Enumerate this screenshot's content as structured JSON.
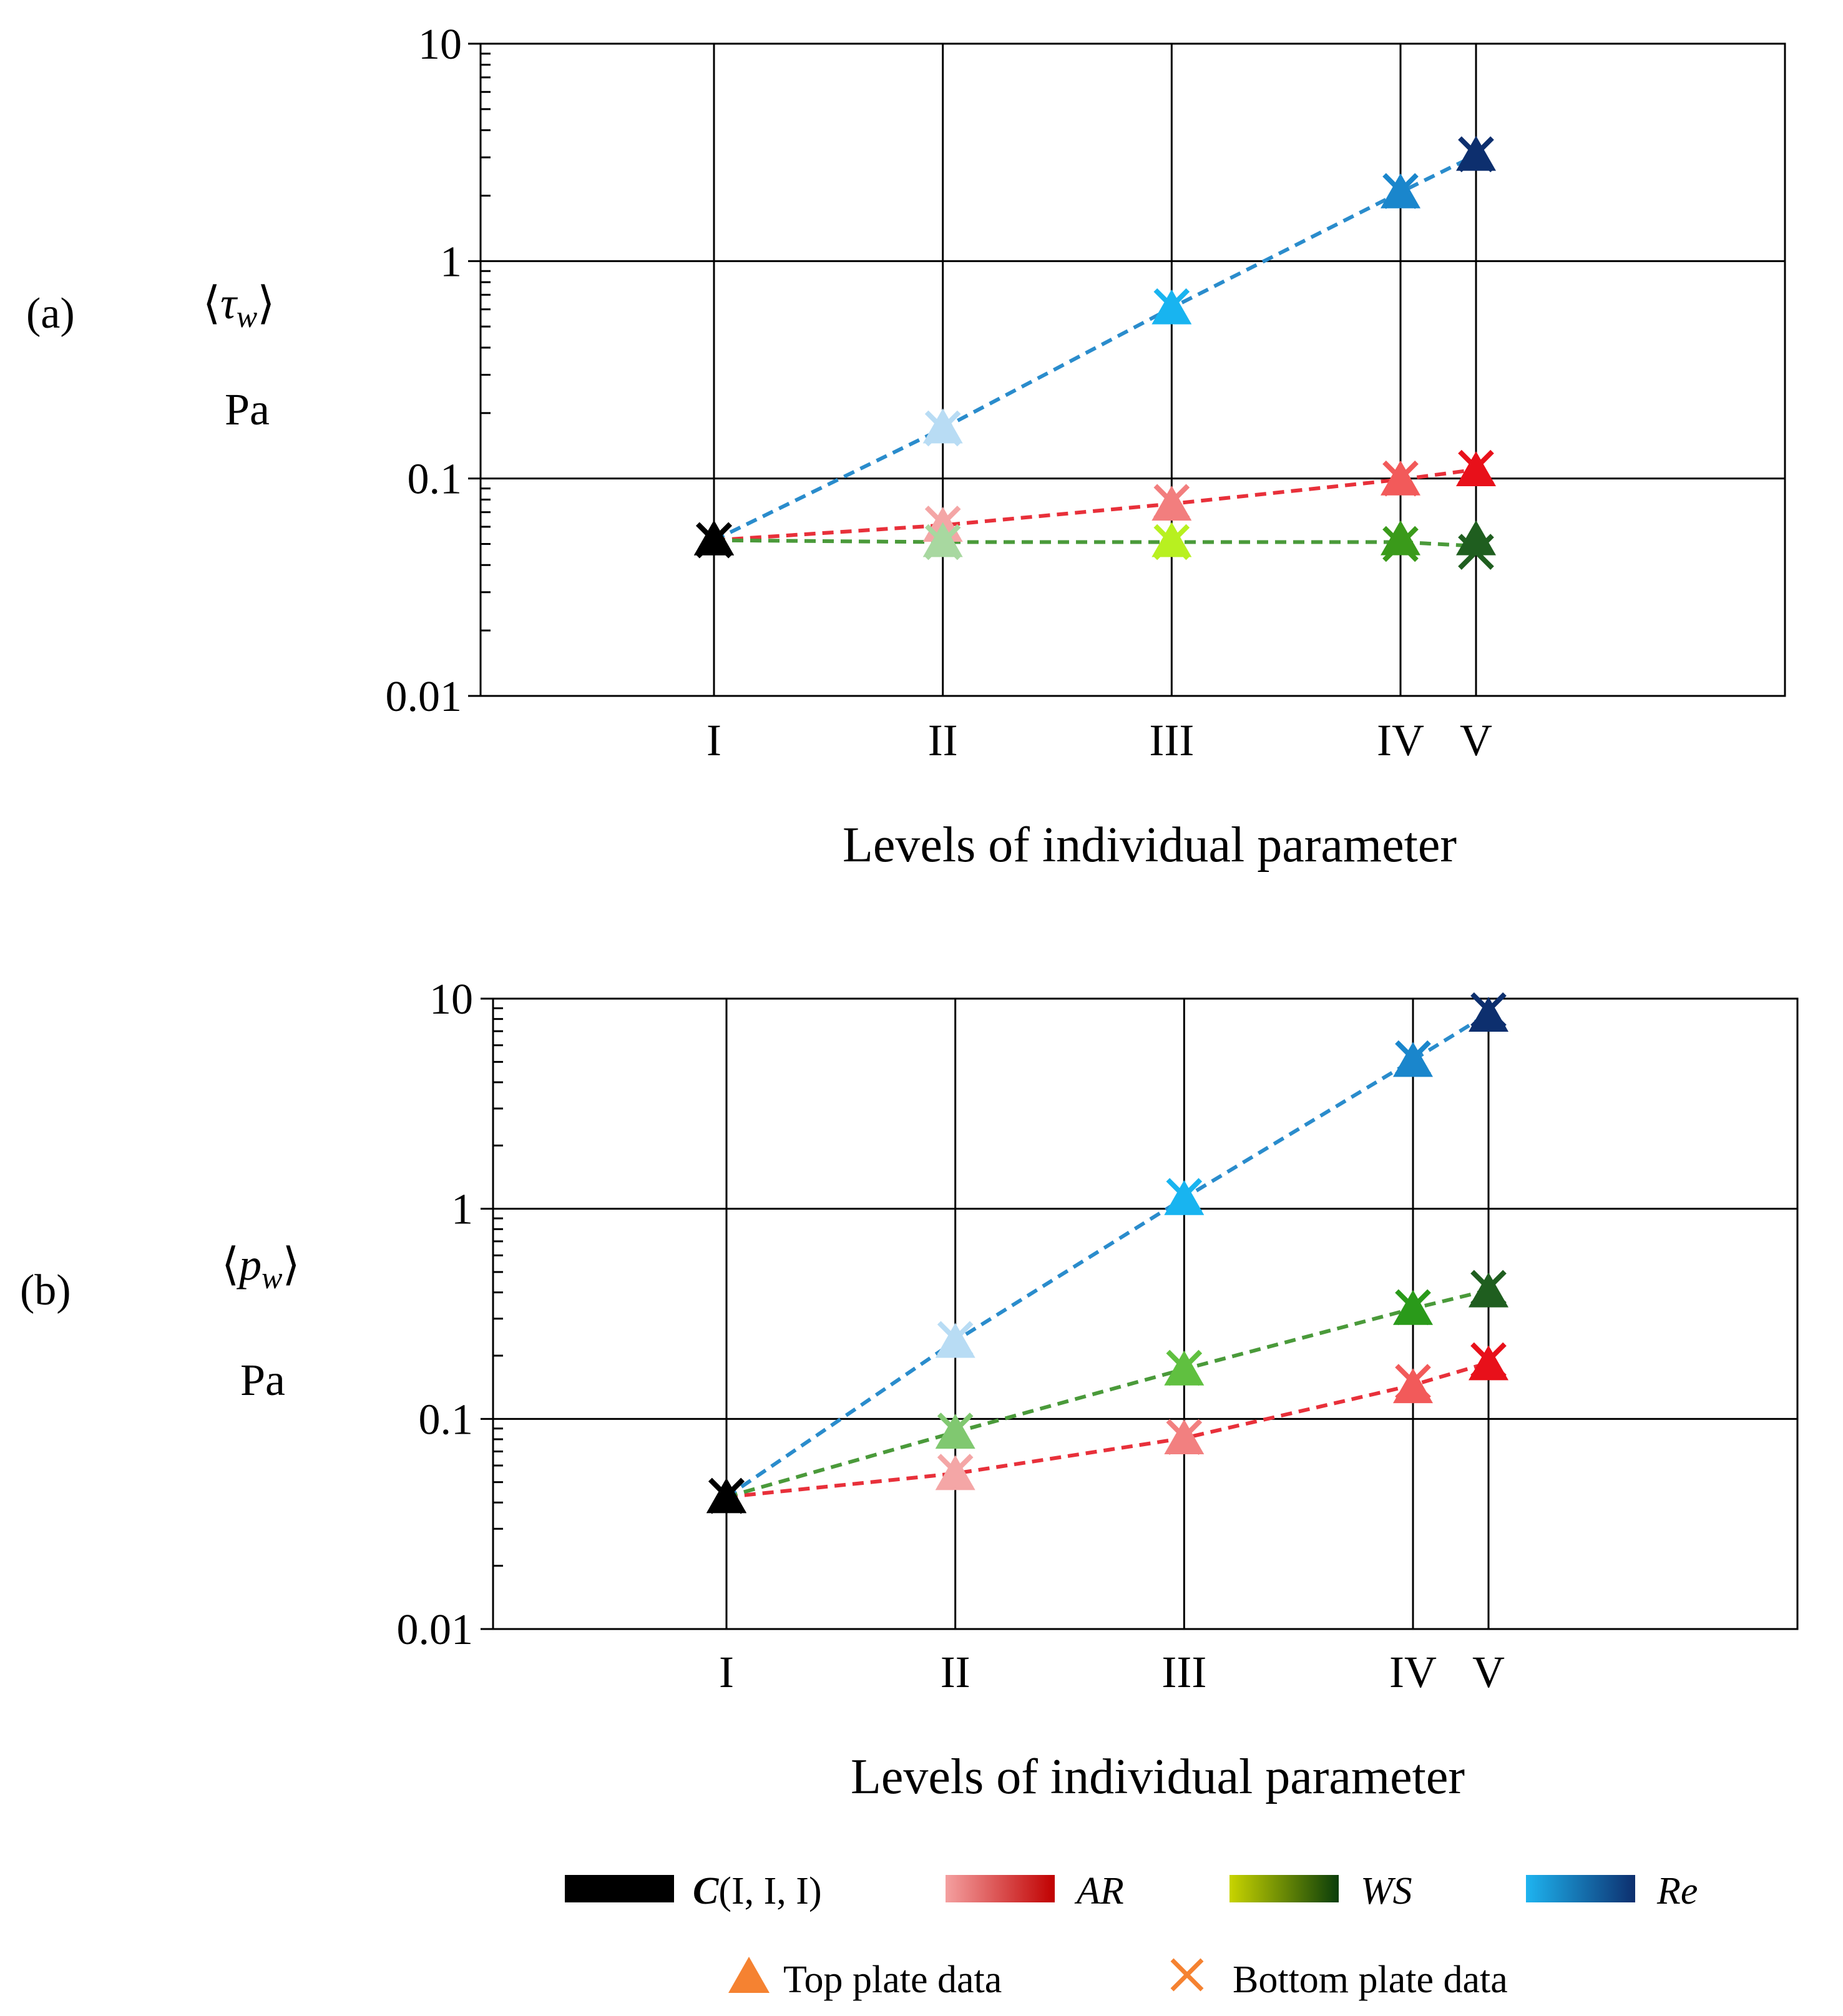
{
  "panels": [
    {
      "panel_label": "(a)",
      "ylabel_line1": "⟨τ_w⟩",
      "ylabel_symbol": "τ",
      "ylabel_subscript": "w",
      "ylabel_unit": "Pa",
      "xlabel": "Levels of individual parameter"
    },
    {
      "panel_label": "(b)",
      "ylabel_line1": "⟨p_w⟩",
      "ylabel_symbol": "p",
      "ylabel_subscript": "w",
      "ylabel_unit": "Pa",
      "xlabel": "Levels of individual parameter"
    }
  ],
  "legend": {
    "items": [
      {
        "label_main": "C",
        "label_rest": "(I, I, I)",
        "colors": [
          "#000000",
          "#000000"
        ]
      },
      {
        "label_main": "AR",
        "label_rest": "",
        "colors": [
          "#f4a0a0",
          "#c00000"
        ]
      },
      {
        "label_main": "WS",
        "label_rest": "",
        "colors": [
          "#c8d400",
          "#0a3d0a"
        ]
      },
      {
        "label_main": "Re",
        "label_rest": "",
        "colors": [
          "#1eb4f0",
          "#0d2f6e"
        ]
      }
    ],
    "markers": [
      {
        "label": "Top plate data",
        "symbol": "triangle",
        "color": "#f58231"
      },
      {
        "label": "Bottom plate data",
        "symbol": "cross",
        "color": "#f58231"
      }
    ]
  },
  "chart_data": [
    {
      "type": "line",
      "title": "(a)",
      "ylabel": "⟨τ_w⟩ Pa",
      "xlabel": "Levels of individual parameter",
      "yscale": "log",
      "ylim": [
        0.01,
        10
      ],
      "yticks": [
        "0.01",
        "0.1",
        "1",
        "10"
      ],
      "ytick_values": [
        0.01,
        0.1,
        1,
        10
      ],
      "categories": [
        "I",
        "II",
        "III",
        "IV",
        "V"
      ],
      "category_positions": [
        1,
        2,
        3,
        4,
        4.33
      ],
      "xlim": [
        -0.02,
        5.68
      ],
      "series": [
        {
          "name": "C(I, I, I)",
          "line_color": "#000000",
          "levels": [
            1
          ],
          "top": [
            0.052
          ],
          "bottom": [
            0.052
          ],
          "point_colors": [
            "#000000"
          ]
        },
        {
          "name": "AR",
          "line_color": "#e8303a",
          "levels": [
            1,
            2,
            3,
            4,
            5
          ],
          "top": [
            0.052,
            0.06,
            0.075,
            0.098,
            0.108
          ],
          "bottom": [
            0.052,
            0.062,
            0.078,
            0.1,
            0.112
          ],
          "point_colors": [
            "#000000",
            "#f4a6a6",
            "#f27e7e",
            "#f25a5a",
            "#e8101a"
          ]
        },
        {
          "name": "WS",
          "line_color": "#4a9a3a",
          "levels": [
            1,
            2,
            3,
            4,
            5
          ],
          "top": [
            0.052,
            0.051,
            0.051,
            0.052,
            0.052
          ],
          "bottom": [
            0.052,
            0.051,
            0.051,
            0.05,
            0.046
          ],
          "point_colors": [
            "#000000",
            "#a8d8a0",
            "#b8f020",
            "#3a9a1a",
            "#1f5e1f"
          ]
        },
        {
          "name": "Re",
          "line_color": "#2a8ccc",
          "levels": [
            1,
            2,
            3,
            4,
            5
          ],
          "top": [
            0.052,
            0.17,
            0.6,
            2.05,
            3.05
          ],
          "bottom": [
            0.052,
            0.17,
            0.62,
            2.1,
            3.1
          ],
          "point_colors": [
            "#000000",
            "#b8dcf4",
            "#18b4f0",
            "#1a86cc",
            "#0d2f6e"
          ]
        }
      ]
    },
    {
      "type": "line",
      "title": "(b)",
      "ylabel": "⟨p_w⟩ Pa",
      "xlabel": "Levels of individual parameter",
      "yscale": "log",
      "ylim": [
        0.01,
        10
      ],
      "yticks": [
        "0.01",
        "0.1",
        "1",
        "10"
      ],
      "ytick_values": [
        0.01,
        0.1,
        1,
        10
      ],
      "categories": [
        "I",
        "II",
        "III",
        "IV",
        "V"
      ],
      "category_positions": [
        1,
        2,
        3,
        4,
        4.33
      ],
      "xlim": [
        -0.02,
        5.68
      ],
      "series": [
        {
          "name": "C(I, I, I)",
          "line_color": "#000000",
          "levels": [
            1
          ],
          "top": [
            0.042
          ],
          "bottom": [
            0.043
          ],
          "point_colors": [
            "#000000"
          ]
        },
        {
          "name": "AR",
          "line_color": "#e8303a",
          "levels": [
            1,
            2,
            3,
            4,
            5
          ],
          "top": [
            0.042,
            0.054,
            0.08,
            0.14,
            0.18
          ],
          "bottom": [
            0.043,
            0.056,
            0.082,
            0.15,
            0.19
          ],
          "point_colors": [
            "#000000",
            "#f4a6a6",
            "#f28080",
            "#f25a5a",
            "#e8101a"
          ]
        },
        {
          "name": "WS",
          "line_color": "#4a9a3a",
          "levels": [
            1,
            2,
            3,
            4,
            5
          ],
          "top": [
            0.042,
            0.085,
            0.17,
            0.33,
            0.4
          ],
          "bottom": [
            0.043,
            0.088,
            0.175,
            0.34,
            0.42
          ],
          "point_colors": [
            "#000000",
            "#80c870",
            "#60c040",
            "#2a9a1a",
            "#1f5e1f"
          ]
        },
        {
          "name": "Re",
          "line_color": "#2a8ccc",
          "levels": [
            1,
            2,
            3,
            4,
            5
          ],
          "top": [
            0.042,
            0.23,
            1.1,
            5.0,
            8.2
          ],
          "bottom": [
            0.043,
            0.24,
            1.15,
            5.2,
            8.8
          ],
          "point_colors": [
            "#000000",
            "#b8dcf4",
            "#18b4f0",
            "#1a86cc",
            "#0d2f6e"
          ]
        }
      ]
    }
  ]
}
